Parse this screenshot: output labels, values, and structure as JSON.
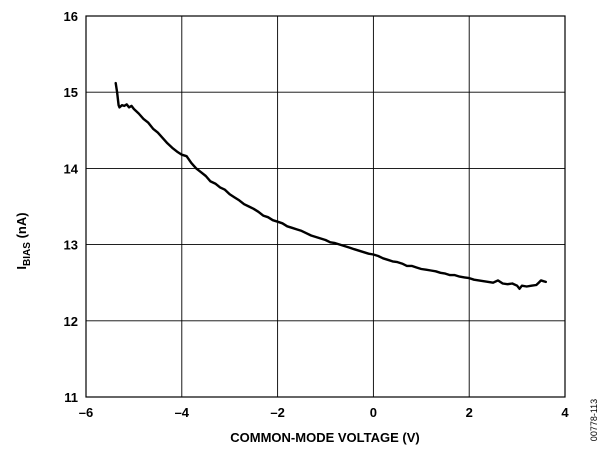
{
  "figure_id": "00778-113",
  "chart_data": {
    "type": "line",
    "title": "",
    "xlabel": "COMMON-MODE VOLTAGE (V)",
    "ylabel_main": "I",
    "ylabel_sub": "BIAS",
    "ylabel_unit": " (nA)",
    "xlim": [
      -6,
      4
    ],
    "ylim": [
      11,
      16
    ],
    "xticks": [
      -6,
      -4,
      -2,
      0,
      2,
      4
    ],
    "xtick_labels": [
      "–6",
      "–4",
      "–2",
      "0",
      "2",
      "4"
    ],
    "yticks": [
      11,
      12,
      13,
      14,
      15,
      16
    ],
    "ytick_labels": [
      "11",
      "12",
      "13",
      "14",
      "15",
      "16"
    ],
    "grid": true,
    "series": [
      {
        "color": "#000000",
        "x": [
          -5.38,
          -5.35,
          -5.32,
          -5.3,
          -5.25,
          -5.2,
          -5.15,
          -5.1,
          -5.05,
          -5.0,
          -4.9,
          -4.8,
          -4.7,
          -4.6,
          -4.5,
          -4.4,
          -4.3,
          -4.2,
          -4.1,
          -4.0,
          -3.9,
          -3.8,
          -3.7,
          -3.6,
          -3.5,
          -3.4,
          -3.3,
          -3.2,
          -3.1,
          -3.0,
          -2.9,
          -2.8,
          -2.7,
          -2.6,
          -2.5,
          -2.4,
          -2.3,
          -2.2,
          -2.1,
          -2.0,
          -1.9,
          -1.8,
          -1.7,
          -1.6,
          -1.5,
          -1.4,
          -1.3,
          -1.2,
          -1.1,
          -1.0,
          -0.9,
          -0.8,
          -0.7,
          -0.6,
          -0.5,
          -0.4,
          -0.3,
          -0.2,
          -0.1,
          0.0,
          0.1,
          0.2,
          0.3,
          0.4,
          0.5,
          0.6,
          0.7,
          0.8,
          0.9,
          1.0,
          1.1,
          1.2,
          1.3,
          1.4,
          1.5,
          1.6,
          1.7,
          1.8,
          1.9,
          2.0,
          2.1,
          2.2,
          2.3,
          2.4,
          2.5,
          2.6,
          2.7,
          2.8,
          2.9,
          3.0,
          3.05,
          3.1,
          3.2,
          3.3,
          3.4,
          3.45,
          3.5,
          3.55,
          3.6
        ],
        "y": [
          15.12,
          15.0,
          14.83,
          14.8,
          14.83,
          14.82,
          14.84,
          14.8,
          14.82,
          14.78,
          14.72,
          14.65,
          14.6,
          14.52,
          14.47,
          14.4,
          14.33,
          14.27,
          14.22,
          14.18,
          14.16,
          14.07,
          14.0,
          13.95,
          13.9,
          13.83,
          13.8,
          13.75,
          13.72,
          13.66,
          13.62,
          13.58,
          13.53,
          13.5,
          13.47,
          13.43,
          13.38,
          13.36,
          13.32,
          13.3,
          13.28,
          13.24,
          13.22,
          13.2,
          13.18,
          13.15,
          13.12,
          13.1,
          13.08,
          13.06,
          13.03,
          13.02,
          13.0,
          12.98,
          12.96,
          12.94,
          12.92,
          12.9,
          12.88,
          12.87,
          12.85,
          12.82,
          12.8,
          12.78,
          12.77,
          12.75,
          12.72,
          12.72,
          12.7,
          12.68,
          12.67,
          12.66,
          12.65,
          12.63,
          12.62,
          12.6,
          12.6,
          12.58,
          12.57,
          12.56,
          12.54,
          12.53,
          12.52,
          12.51,
          12.5,
          12.53,
          12.49,
          12.48,
          12.49,
          12.46,
          12.42,
          12.46,
          12.45,
          12.46,
          12.47,
          12.5,
          12.53,
          12.52,
          12.51
        ]
      }
    ]
  }
}
